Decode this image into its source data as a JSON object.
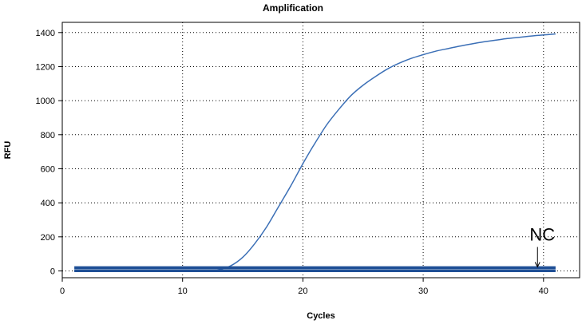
{
  "chart_data": {
    "type": "line",
    "title": "Amplification",
    "xlabel": "Cycles",
    "ylabel": "RFU",
    "xlim": [
      0,
      43
    ],
    "ylim": [
      -40,
      1460
    ],
    "xticks": [
      0,
      10,
      20,
      30,
      40
    ],
    "yticks": [
      0,
      200,
      400,
      600,
      800,
      1000,
      1200,
      1400
    ],
    "grid": true,
    "colors": {
      "amplification": "#3b6fb6",
      "baseline": "#1f4f96"
    },
    "series": [
      {
        "x": [
          1,
          2,
          3,
          4,
          5,
          6,
          7,
          8,
          9,
          10,
          11,
          12,
          13,
          14,
          15,
          16,
          17,
          18,
          19,
          20,
          21,
          22,
          23,
          24,
          25,
          26,
          27,
          28,
          29,
          30,
          31,
          32,
          33,
          34,
          35,
          36,
          37,
          38,
          39,
          40,
          41
        ],
        "y": [
          0,
          0,
          0,
          0,
          0,
          0,
          0,
          0,
          0,
          0,
          0,
          0,
          5,
          30,
          80,
          160,
          260,
          380,
          500,
          630,
          750,
          860,
          950,
          1030,
          1090,
          1140,
          1185,
          1220,
          1248,
          1270,
          1290,
          1305,
          1320,
          1333,
          1345,
          1355,
          1365,
          1372,
          1380,
          1386,
          1392
        ]
      },
      {
        "x": [
          1,
          41
        ],
        "y": [
          18,
          18
        ]
      },
      {
        "x": [
          1,
          41
        ],
        "y": [
          0,
          0
        ]
      }
    ],
    "annotations": [
      {
        "text": "NC",
        "x": 39.5,
        "y": 0
      }
    ]
  }
}
